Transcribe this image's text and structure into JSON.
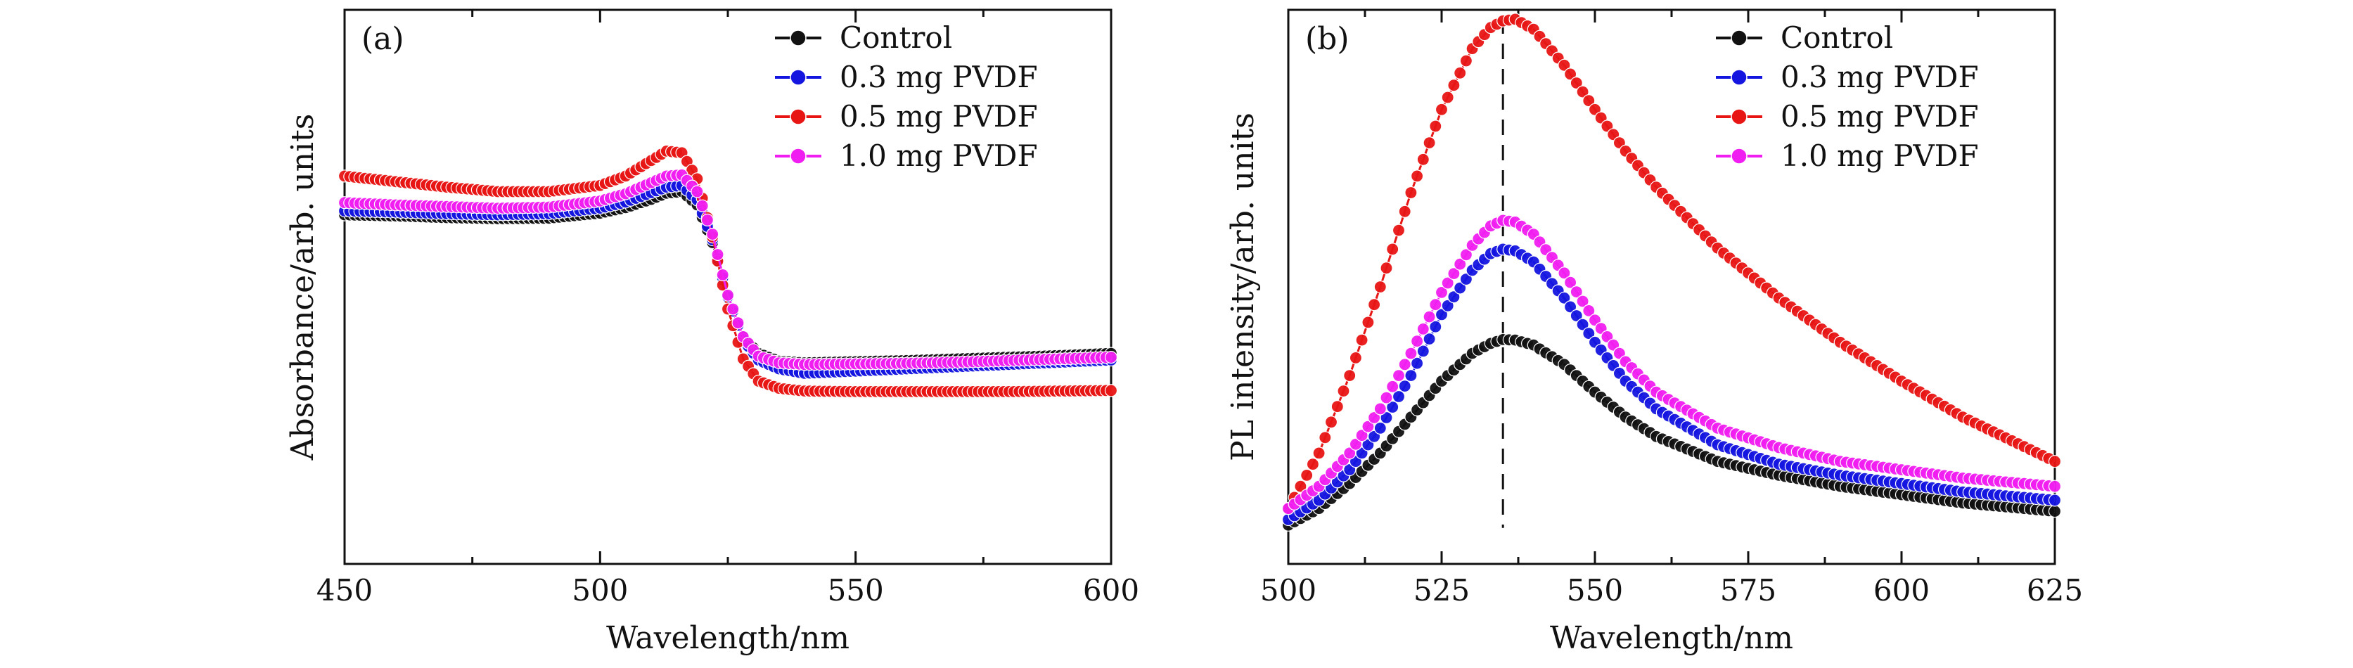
{
  "figure": {
    "panels": [
      {
        "id": "a",
        "label": "(a)"
      },
      {
        "id": "b",
        "label": "(b)"
      }
    ]
  },
  "chart_data": [
    {
      "type": "scatter",
      "panel_label": "(a)",
      "title": "",
      "xlabel": "Wavelength/nm",
      "ylabel": "Absorbance/arb. units",
      "xlim": [
        450,
        600
      ],
      "ylim": [
        0,
        1
      ],
      "xticks": [
        450,
        500,
        550,
        600
      ],
      "yticks_shown": false,
      "grid": false,
      "legend": "top-right",
      "markers_with_line": true,
      "series": [
        {
          "name": "Control",
          "color": "#111111",
          "x": [
            450,
            460,
            470,
            480,
            490,
            500,
            505,
            510,
            513,
            516,
            519,
            522,
            525,
            528,
            531,
            535,
            540,
            550,
            560,
            570,
            580,
            590,
            600
          ],
          "y": [
            0.63,
            0.628,
            0.625,
            0.623,
            0.624,
            0.633,
            0.643,
            0.658,
            0.669,
            0.672,
            0.648,
            0.58,
            0.48,
            0.41,
            0.38,
            0.366,
            0.363,
            0.365,
            0.367,
            0.37,
            0.373,
            0.376,
            0.38
          ]
        },
        {
          "name": "0.3 mg PVDF",
          "color": "#1515e0",
          "x": [
            450,
            460,
            470,
            480,
            490,
            500,
            505,
            510,
            513,
            516,
            519,
            522,
            525,
            528,
            531,
            535,
            540,
            550,
            560,
            570,
            580,
            590,
            600
          ],
          "y": [
            0.637,
            0.635,
            0.632,
            0.63,
            0.632,
            0.642,
            0.653,
            0.67,
            0.68,
            0.683,
            0.657,
            0.585,
            0.482,
            0.405,
            0.368,
            0.352,
            0.344,
            0.348,
            0.352,
            0.356,
            0.36,
            0.364,
            0.368
          ]
        },
        {
          "name": "0.5 mg PVDF",
          "color": "#e81515",
          "x": [
            450,
            460,
            470,
            480,
            490,
            500,
            505,
            510,
            513,
            516,
            519,
            522,
            525,
            528,
            531,
            535,
            540,
            550,
            560,
            570,
            580,
            590,
            600
          ],
          "y": [
            0.7,
            0.69,
            0.68,
            0.672,
            0.672,
            0.683,
            0.7,
            0.728,
            0.745,
            0.742,
            0.695,
            0.59,
            0.46,
            0.37,
            0.33,
            0.317,
            0.312,
            0.311,
            0.311,
            0.311,
            0.311,
            0.312,
            0.313
          ]
        },
        {
          "name": "1.0 mg PVDF",
          "color": "#f01ef0",
          "x": [
            450,
            460,
            470,
            480,
            490,
            500,
            505,
            510,
            513,
            516,
            519,
            522,
            525,
            528,
            531,
            535,
            540,
            550,
            560,
            570,
            580,
            590,
            600
          ],
          "y": [
            0.652,
            0.648,
            0.645,
            0.642,
            0.644,
            0.655,
            0.668,
            0.688,
            0.7,
            0.702,
            0.672,
            0.595,
            0.485,
            0.41,
            0.375,
            0.363,
            0.36,
            0.361,
            0.362,
            0.364,
            0.367,
            0.37,
            0.373
          ]
        }
      ]
    },
    {
      "type": "scatter",
      "panel_label": "(b)",
      "title": "",
      "xlabel": "Wavelength/nm",
      "ylabel": "PL intensity/arb. units",
      "xlim": [
        500,
        625
      ],
      "ylim": [
        0,
        1
      ],
      "xticks": [
        500,
        525,
        550,
        575,
        600,
        625
      ],
      "yticks_shown": false,
      "grid": false,
      "legend": "top-right",
      "markers_with_line": true,
      "reference_line_x": 535,
      "series": [
        {
          "name": "Control",
          "color": "#111111",
          "x": [
            500,
            505,
            510,
            515,
            520,
            525,
            530,
            533,
            535,
            537,
            540,
            545,
            550,
            555,
            560,
            570,
            580,
            590,
            600,
            610,
            625
          ],
          "y": [
            0.07,
            0.1,
            0.145,
            0.2,
            0.265,
            0.33,
            0.38,
            0.398,
            0.405,
            0.404,
            0.395,
            0.36,
            0.31,
            0.265,
            0.23,
            0.185,
            0.16,
            0.14,
            0.125,
            0.11,
            0.095
          ]
        },
        {
          "name": "0.3 mg PVDF",
          "color": "#1515e0",
          "x": [
            500,
            505,
            510,
            515,
            520,
            525,
            530,
            533,
            535,
            537,
            540,
            545,
            550,
            555,
            560,
            570,
            580,
            590,
            600,
            610,
            625
          ],
          "y": [
            0.08,
            0.115,
            0.17,
            0.245,
            0.34,
            0.45,
            0.53,
            0.56,
            0.568,
            0.565,
            0.545,
            0.48,
            0.4,
            0.33,
            0.28,
            0.215,
            0.18,
            0.16,
            0.145,
            0.13,
            0.115
          ]
        },
        {
          "name": "0.5 mg PVDF",
          "color": "#e81515",
          "x": [
            500,
            505,
            510,
            515,
            520,
            525,
            530,
            533,
            535,
            537,
            540,
            545,
            550,
            555,
            560,
            570,
            580,
            590,
            600,
            610,
            625
          ],
          "y": [
            0.1,
            0.2,
            0.34,
            0.5,
            0.67,
            0.82,
            0.93,
            0.968,
            0.98,
            0.983,
            0.965,
            0.9,
            0.82,
            0.745,
            0.68,
            0.57,
            0.48,
            0.4,
            0.33,
            0.265,
            0.185
          ]
        },
        {
          "name": "1.0 mg PVDF",
          "color": "#f01ef0",
          "x": [
            500,
            505,
            510,
            515,
            520,
            525,
            530,
            533,
            535,
            537,
            540,
            545,
            550,
            555,
            560,
            570,
            580,
            590,
            600,
            610,
            625
          ],
          "y": [
            0.1,
            0.14,
            0.2,
            0.28,
            0.38,
            0.49,
            0.575,
            0.61,
            0.62,
            0.617,
            0.595,
            0.525,
            0.44,
            0.365,
            0.31,
            0.245,
            0.21,
            0.185,
            0.17,
            0.155,
            0.14
          ]
        }
      ]
    }
  ]
}
